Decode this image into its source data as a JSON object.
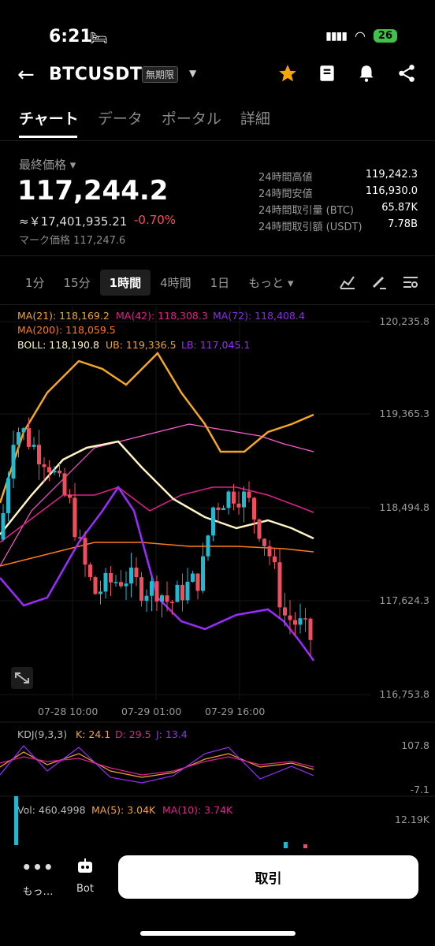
{
  "status": {
    "time": "6:21",
    "battery": "26"
  },
  "header": {
    "symbol": "BTCUSDT",
    "badge": "無期限"
  },
  "tabs": [
    {
      "label": "チャート",
      "active": true
    },
    {
      "label": "データ"
    },
    {
      "label": "ポータル"
    },
    {
      "label": "詳細"
    }
  ],
  "price": {
    "label": "最終価格",
    "last": "117,244.2",
    "cny": "≈￥17,401,935.21",
    "change": "-0.70%",
    "mark_label": "マーク価格",
    "mark_value": "117,247.6"
  },
  "stats": [
    {
      "label": "24時間高値",
      "value": "119,242.3"
    },
    {
      "label": "24時間安値",
      "value": "116,930.0"
    },
    {
      "label": "24時間取引量 (BTC)",
      "value": "65.87K"
    },
    {
      "label": "24時間取引額 (USDT)",
      "value": "7.78B"
    }
  ],
  "timeframes": [
    {
      "label": "1分"
    },
    {
      "label": "15分"
    },
    {
      "label": "1時間",
      "active": true
    },
    {
      "label": "4時間"
    },
    {
      "label": "1日"
    },
    {
      "label": "もっと ▾"
    }
  ],
  "indicators": {
    "ma21": "MA(21): 118,169.2",
    "ma42": "MA(42): 118,308.3",
    "ma72": "MA(72): 118,408.4",
    "ma200": "MA(200): 118,059.5",
    "boll": "BOLL: 118,190.8",
    "ub": "UB: 119,336.5",
    "lb": "LB: 117,045.1",
    "kdj": "KDJ(9,3,3)",
    "k": "K: 24.1",
    "d": "D: 29.5",
    "j": "J: 13.4",
    "vol": "Vol: 460.4998",
    "vma5": "MA(5): 3.04K",
    "vma10": "MA(10): 3.74K"
  },
  "chart_data": {
    "type": "candlestick",
    "y_ticks": [
      "120,235.8",
      "119,365.3",
      "118,494.8",
      "117,624.3",
      "116,753.8"
    ],
    "x_ticks": [
      "07-28 10:00",
      "07-29 01:00",
      "07-29 16:00"
    ],
    "kdj_ticks": [
      "107.8",
      "-7.1"
    ],
    "vol_tick": "12.19K",
    "ylim": [
      116753.8,
      120235.8
    ],
    "colors": {
      "up": "#22b8cf",
      "down": "#f04e5e",
      "ma21": "#f0a33b",
      "ma42": "#e0208c",
      "ma72": "#8a2be2",
      "ma200": "#ff7a1a",
      "boll_mid": "#fff4c2",
      "ub": "#f5a623",
      "lb": "#9b2cff"
    }
  },
  "bottom": {
    "more": "もっ…",
    "bot": "Bot",
    "trade": "取引"
  }
}
